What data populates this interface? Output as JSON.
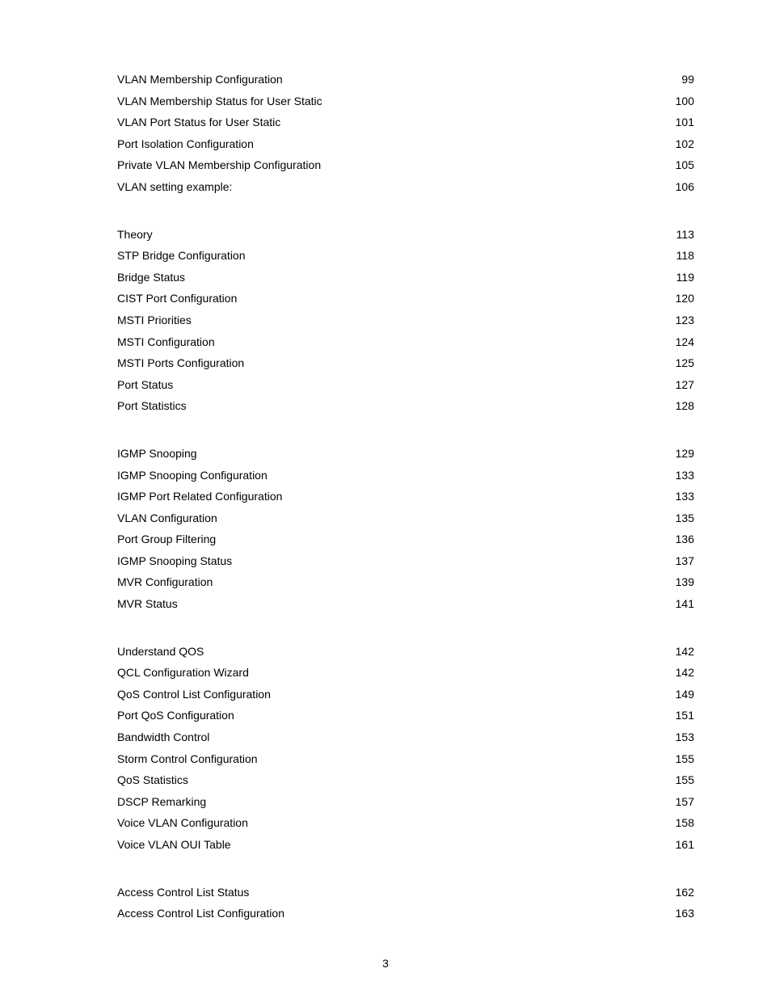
{
  "page_number": "3",
  "groups": [
    {
      "entries": [
        {
          "title": "VLAN Membership Configuration",
          "page": "99"
        },
        {
          "title": "VLAN Membership Status for User Static",
          "page": "100"
        },
        {
          "title": "VLAN Port Status for User Static",
          "page": "101"
        },
        {
          "title": "Port Isolation Configuration",
          "page": "102"
        },
        {
          "title": "Private VLAN Membership Configuration",
          "page": "105"
        },
        {
          "title": "VLAN setting example:",
          "page": "106"
        }
      ]
    },
    {
      "entries": [
        {
          "title": "Theory",
          "page": "113"
        },
        {
          "title": "STP Bridge Configuration",
          "page": "118"
        },
        {
          "title": "Bridge Status",
          "page": "119"
        },
        {
          "title": "CIST Port Configuration",
          "page": "120"
        },
        {
          "title": "MSTI Priorities",
          "page": "123"
        },
        {
          "title": "MSTI Configuration",
          "page": "124"
        },
        {
          "title": "MSTI Ports Configuration",
          "page": "125"
        },
        {
          "title": "Port Status",
          "page": "127"
        },
        {
          "title": "Port Statistics",
          "page": "128"
        }
      ]
    },
    {
      "entries": [
        {
          "title": "IGMP Snooping",
          "page": "129"
        },
        {
          "title": "IGMP Snooping Configuration",
          "page": "133"
        },
        {
          "title": "IGMP Port Related Configuration",
          "page": "133"
        },
        {
          "title": "VLAN Configuration",
          "page": "135"
        },
        {
          "title": "Port Group Filtering",
          "page": "136"
        },
        {
          "title": "IGMP Snooping Status",
          "page": "137"
        },
        {
          "title": "MVR Configuration",
          "page": "139"
        },
        {
          "title": "MVR Status",
          "page": "141"
        }
      ]
    },
    {
      "entries": [
        {
          "title": "Understand QOS",
          "page": "142"
        },
        {
          "title": "QCL Configuration Wizard",
          "page": "142"
        },
        {
          "title": "QoS Control List Configuration",
          "page": "149"
        },
        {
          "title": "Port QoS Configuration",
          "page": "151"
        },
        {
          "title": "Bandwidth Control",
          "page": "153"
        },
        {
          "title": "Storm Control Configuration",
          "page": "155"
        },
        {
          "title": "QoS Statistics",
          "page": "155"
        },
        {
          "title": "DSCP Remarking",
          "page": "157"
        },
        {
          "title": "Voice VLAN Configuration",
          "page": "158"
        },
        {
          "title": "Voice VLAN OUI Table",
          "page": "161"
        }
      ]
    },
    {
      "entries": [
        {
          "title": "Access Control List Status",
          "page": "162"
        },
        {
          "title": "Access Control List Configuration",
          "page": "163"
        }
      ]
    }
  ]
}
